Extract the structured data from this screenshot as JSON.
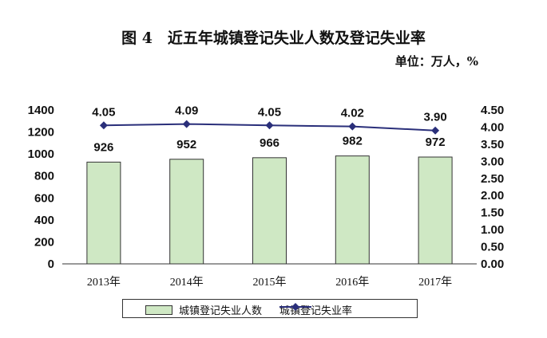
{
  "figure_title": "图 4　近五年城镇登记失业人数及登记失业率",
  "unit_label": "单位：万人，%",
  "colors": {
    "bar_fill": "#cfe8c4",
    "bar_stroke": "#333333",
    "line": "#2a2f7a",
    "axis": "#333333"
  },
  "chart_data": {
    "type": "bar+line",
    "categories": [
      "2013年",
      "2014年",
      "2015年",
      "2016年",
      "2017年"
    ],
    "series": [
      {
        "name": "城镇登记失业人数",
        "type": "bar",
        "axis": "left",
        "values": [
          926,
          952,
          966,
          982,
          972
        ],
        "labels": [
          "926",
          "952",
          "966",
          "982",
          "972"
        ]
      },
      {
        "name": "城镇登记失业率",
        "type": "line",
        "axis": "right",
        "values": [
          4.05,
          4.09,
          4.05,
          4.02,
          3.9
        ],
        "labels": [
          "4.05",
          "4.09",
          "4.05",
          "4.02",
          "3.90"
        ]
      }
    ],
    "y_left": {
      "min": 0,
      "max": 1400,
      "ticks": [
        "0",
        "200",
        "400",
        "600",
        "800",
        "1000",
        "1200",
        "1400"
      ]
    },
    "y_right": {
      "min": 0,
      "max": 4.5,
      "ticks": [
        "0.00",
        "0.50",
        "1.00",
        "1.50",
        "2.00",
        "2.50",
        "3.00",
        "3.50",
        "4.00",
        "4.50"
      ]
    },
    "legend": {
      "position": "bottom"
    }
  }
}
